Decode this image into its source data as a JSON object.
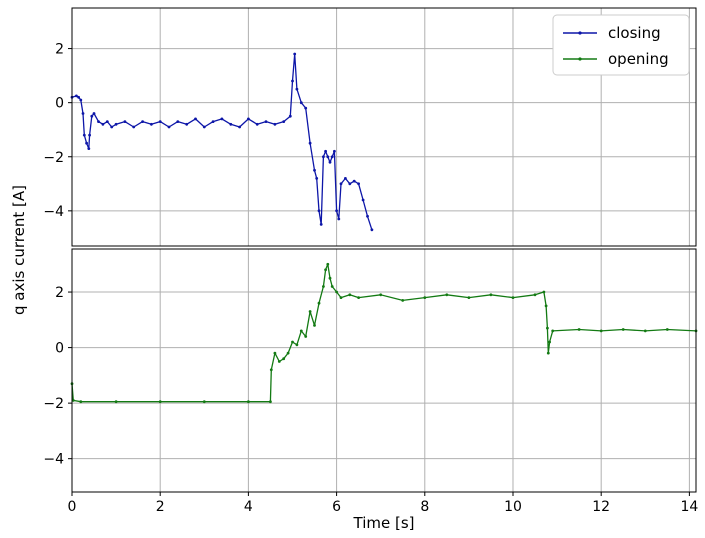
{
  "chart_data": {
    "type": "line",
    "xlabel": "Time [s]",
    "ylabel": "q axis current [A]",
    "xlim": [
      0,
      14.15
    ],
    "x_ticks": [
      0,
      2,
      4,
      6,
      8,
      10,
      12,
      14
    ],
    "x_tick_labels": [
      "0",
      "2",
      "4",
      "6",
      "8",
      "10",
      "12",
      "14"
    ],
    "grid": true,
    "legend": {
      "placement": "top-right",
      "entries": [
        "closing",
        "opening"
      ]
    },
    "panels": [
      {
        "ylim": [
          -5.3,
          3.5
        ],
        "y_ticks": [
          -4,
          -2,
          0,
          2
        ],
        "y_tick_labels": [
          "−4",
          "−2",
          "0",
          "2"
        ],
        "series": [
          {
            "name": "closing",
            "color": "#0d16a8",
            "points": [
              [
                0.0,
                0.2
              ],
              [
                0.1,
                0.25
              ],
              [
                0.15,
                0.2
              ],
              [
                0.2,
                0.1
              ],
              [
                0.25,
                -0.4
              ],
              [
                0.28,
                -1.2
              ],
              [
                0.33,
                -1.5
              ],
              [
                0.38,
                -1.7
              ],
              [
                0.4,
                -1.2
              ],
              [
                0.45,
                -0.5
              ],
              [
                0.5,
                -0.4
              ],
              [
                0.6,
                -0.7
              ],
              [
                0.7,
                -0.8
              ],
              [
                0.8,
                -0.7
              ],
              [
                0.9,
                -0.9
              ],
              [
                1.0,
                -0.8
              ],
              [
                1.2,
                -0.7
              ],
              [
                1.4,
                -0.9
              ],
              [
                1.6,
                -0.7
              ],
              [
                1.8,
                -0.8
              ],
              [
                2.0,
                -0.7
              ],
              [
                2.2,
                -0.9
              ],
              [
                2.4,
                -0.7
              ],
              [
                2.6,
                -0.8
              ],
              [
                2.8,
                -0.6
              ],
              [
                3.0,
                -0.9
              ],
              [
                3.2,
                -0.7
              ],
              [
                3.4,
                -0.6
              ],
              [
                3.6,
                -0.8
              ],
              [
                3.8,
                -0.9
              ],
              [
                4.0,
                -0.6
              ],
              [
                4.2,
                -0.8
              ],
              [
                4.4,
                -0.7
              ],
              [
                4.6,
                -0.8
              ],
              [
                4.8,
                -0.7
              ],
              [
                4.95,
                -0.5
              ],
              [
                5.0,
                0.8
              ],
              [
                5.05,
                1.8
              ],
              [
                5.1,
                0.5
              ],
              [
                5.2,
                0.0
              ],
              [
                5.3,
                -0.2
              ],
              [
                5.4,
                -1.5
              ],
              [
                5.5,
                -2.5
              ],
              [
                5.55,
                -2.8
              ],
              [
                5.6,
                -4.0
              ],
              [
                5.65,
                -4.5
              ],
              [
                5.7,
                -2.0
              ],
              [
                5.75,
                -1.8
              ],
              [
                5.8,
                -2.0
              ],
              [
                5.85,
                -2.2
              ],
              [
                5.9,
                -2.0
              ],
              [
                5.95,
                -1.8
              ],
              [
                6.0,
                -4.0
              ],
              [
                6.05,
                -4.3
              ],
              [
                6.1,
                -3.0
              ],
              [
                6.2,
                -2.8
              ],
              [
                6.3,
                -3.0
              ],
              [
                6.4,
                -2.9
              ],
              [
                6.5,
                -3.0
              ],
              [
                6.6,
                -3.6
              ],
              [
                6.7,
                -4.2
              ],
              [
                6.8,
                -4.7
              ]
            ]
          }
        ]
      },
      {
        "ylim": [
          -5.2,
          3.55
        ],
        "y_ticks": [
          -4,
          -2,
          0,
          2
        ],
        "y_tick_labels": [
          "−4",
          "−2",
          "0",
          "2"
        ],
        "series": [
          {
            "name": "opening",
            "color": "#137a13",
            "points": [
              [
                0.0,
                -1.3
              ],
              [
                0.03,
                -1.9
              ],
              [
                0.2,
                -1.95
              ],
              [
                1.0,
                -1.95
              ],
              [
                2.0,
                -1.95
              ],
              [
                3.0,
                -1.95
              ],
              [
                4.0,
                -1.95
              ],
              [
                4.5,
                -1.95
              ],
              [
                4.52,
                -0.8
              ],
              [
                4.6,
                -0.2
              ],
              [
                4.7,
                -0.5
              ],
              [
                4.8,
                -0.4
              ],
              [
                4.9,
                -0.2
              ],
              [
                5.0,
                0.2
              ],
              [
                5.1,
                0.1
              ],
              [
                5.2,
                0.6
              ],
              [
                5.3,
                0.4
              ],
              [
                5.4,
                1.3
              ],
              [
                5.5,
                0.8
              ],
              [
                5.6,
                1.6
              ],
              [
                5.7,
                2.2
              ],
              [
                5.75,
                2.8
              ],
              [
                5.8,
                3.0
              ],
              [
                5.85,
                2.5
              ],
              [
                5.9,
                2.2
              ],
              [
                6.0,
                2.0
              ],
              [
                6.1,
                1.8
              ],
              [
                6.3,
                1.9
              ],
              [
                6.5,
                1.8
              ],
              [
                7.0,
                1.9
              ],
              [
                7.5,
                1.7
              ],
              [
                8.0,
                1.8
              ],
              [
                8.5,
                1.9
              ],
              [
                9.0,
                1.8
              ],
              [
                9.5,
                1.9
              ],
              [
                10.0,
                1.8
              ],
              [
                10.5,
                1.9
              ],
              [
                10.7,
                2.0
              ],
              [
                10.75,
                1.5
              ],
              [
                10.78,
                0.7
              ],
              [
                10.8,
                -0.2
              ],
              [
                10.83,
                0.2
              ],
              [
                10.9,
                0.6
              ],
              [
                11.5,
                0.65
              ],
              [
                12.0,
                0.6
              ],
              [
                12.5,
                0.65
              ],
              [
                13.0,
                0.6
              ],
              [
                13.5,
                0.65
              ],
              [
                14.15,
                0.6
              ]
            ]
          }
        ]
      }
    ]
  }
}
